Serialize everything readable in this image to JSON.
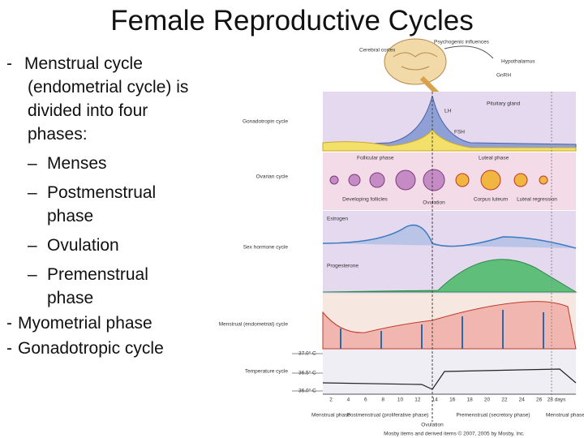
{
  "title": "Female Reproductive Cycles",
  "bullets": [
    {
      "text": "Menstrual cycle",
      "detail": "(endometrial cycle) is divided into four phases:",
      "sub": [
        "Menses",
        "Postmenstrual phase",
        "Ovulation",
        "Premenstrual phase"
      ]
    },
    {
      "text": "Myometrial phase"
    },
    {
      "text": "Gonadotropic cycle"
    }
  ],
  "diagram": {
    "labels": [
      "Cerebral cortex",
      "Psychogenic influences",
      "Hypothalamus",
      "GnRH",
      "Pituitary gland",
      "Gonadotropin cycle",
      "LH",
      "FSH",
      "Follicular phase",
      "Luteal phase",
      "Ovarian cycle",
      "Developing follicles",
      "Ovulation",
      "Corpus luteum",
      "Luteal regression",
      "Estrogen",
      "Sex hormone cycle",
      "Progesterone",
      "Menstrual (endometrial) cycle",
      "37.0° C",
      "36.5° C",
      "36.0° C",
      "Temperature cycle",
      "Menstrual phase",
      "Postmenstrual (proliferative phase)",
      "Ovulation",
      "Premenstrual (secretory phase)",
      "Menstrual phase",
      "Mosby items and derived items © 2007, 2005 by Mosby, Inc."
    ],
    "days": [
      "2",
      "4",
      "6",
      "8",
      "10",
      "12",
      "14",
      "16",
      "18",
      "20",
      "22",
      "24",
      "26",
      "28 days"
    ]
  }
}
